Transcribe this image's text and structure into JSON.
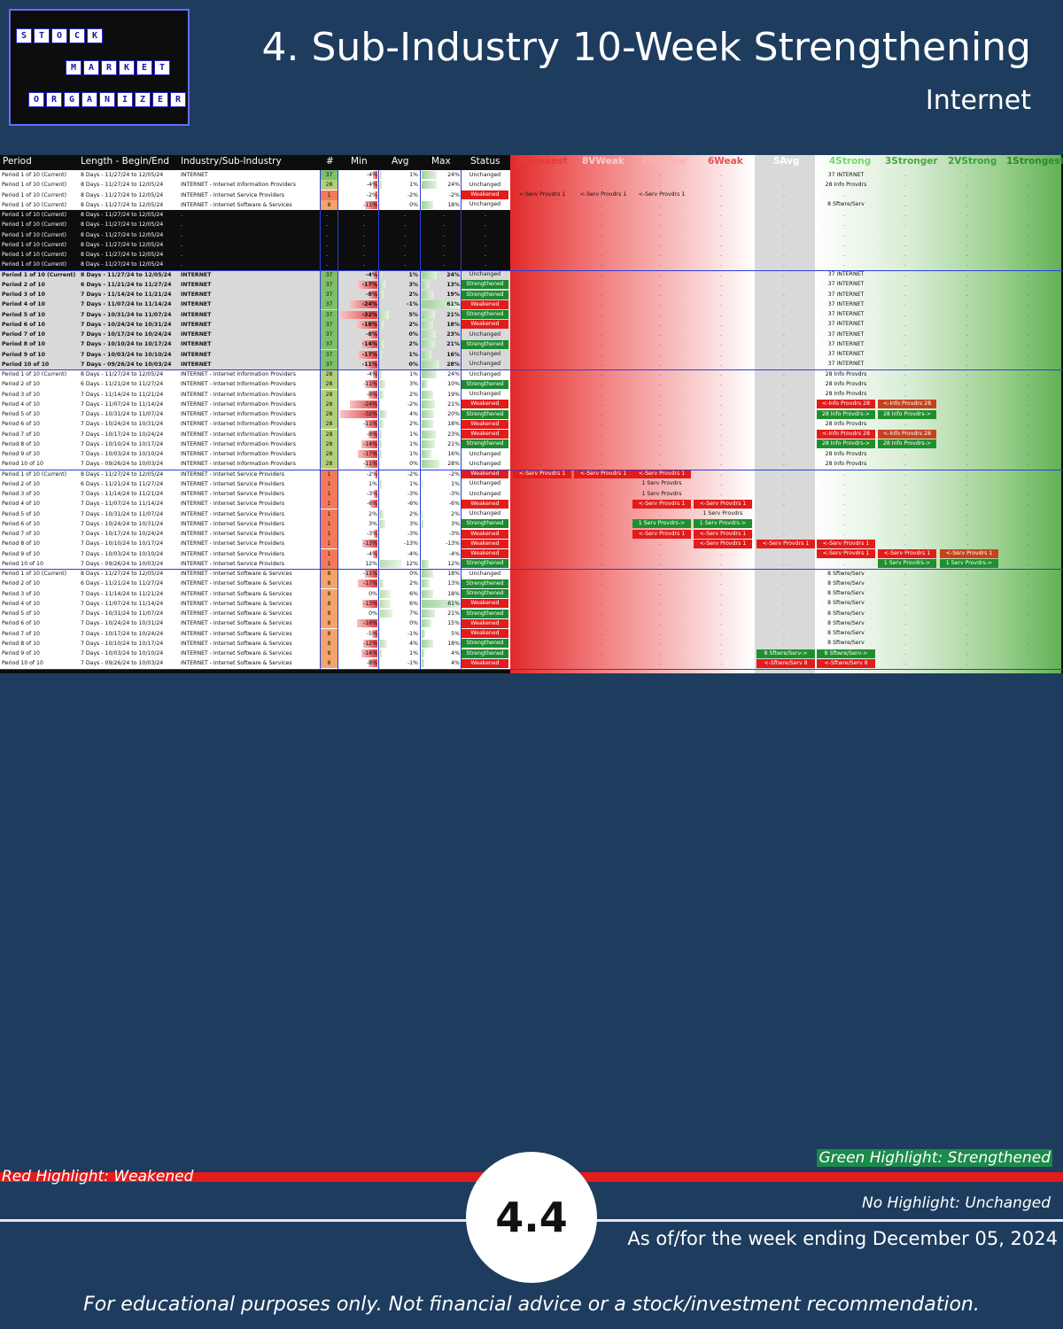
{
  "title": "4. Sub-Industry 10-Week Strengthening",
  "subtitle": "Internet",
  "logo": {
    "row1": [
      "S",
      "T",
      "O",
      "C",
      "K"
    ],
    "row2": [
      "M",
      "A",
      "R",
      "K",
      "E",
      "T"
    ],
    "row3": [
      "O",
      "R",
      "G",
      "A",
      "N",
      "I",
      "Z",
      "E",
      "R"
    ]
  },
  "headers": {
    "period": "Period",
    "length": "Length - Begin/End",
    "industry": "Industry/Sub-Industry",
    "num": "#",
    "min": "Min",
    "avg": "Avg",
    "max": "Max",
    "status": "Status",
    "c9": "9Weakest",
    "c8": "8VWeak",
    "c7": "7Weaker",
    "c6": "6Weak",
    "c5": "5Avg",
    "c4": "4Strong",
    "c3": "3Stronger",
    "c2": "2VStrong",
    "c1": "1Strongest"
  },
  "dot": ".",
  "colors": {
    "strength": "#1c8a2e",
    "weak": "#e21b1b"
  },
  "legend": {
    "green": "Green Highlight: Strengthened",
    "red": "Red Highlight: Weakened",
    "none": "No Highlight: Unchanged"
  },
  "page_number": "4.4",
  "as_of": "As of/for the week ending December 05, 2024",
  "disclaimer": "For educational purposes only. Not financial advice or a stock/investment recommendation.",
  "rows": [
    {
      "p": "Period 1 of 10 (Current)",
      "l": "8 Days - 11/27/24 to 12/05/24",
      "i": "INTERNET",
      "n": "37",
      "mn": "-4%",
      "av": "1%",
      "mx": "24%",
      "st": "Unchanged",
      "cols": {
        "c4": "37 INTERNET"
      }
    },
    {
      "p": "Period 1 of 10 (Current)",
      "l": "8 Days - 11/27/24 to 12/05/24",
      "i": "INTERNET - Internet Information Providers",
      "n": "28",
      "mn": "-4%",
      "av": "1%",
      "mx": "24%",
      "st": "Unchanged",
      "cols": {
        "c4": "28 Info Provdrs"
      }
    },
    {
      "p": "Period 1 of 10 (Current)",
      "l": "8 Days - 11/27/24 to 12/05/24",
      "i": "INTERNET - Internet Service Providers",
      "n": "1",
      "mn": "-2%",
      "av": "-2%",
      "mx": "-2%",
      "st": "Weakened",
      "cols": {
        "c9": "<-Serv Provdrs 1",
        "c8": "<-Serv Provdrs 1",
        "c7": "<-Serv Provdrs 1"
      }
    },
    {
      "p": "Period 1 of 10 (Current)",
      "l": "8 Days - 11/27/24 to 12/05/24",
      "i": "INTERNET - Internet Software & Services",
      "n": "8",
      "mn": "-11%",
      "av": "0%",
      "mx": "18%",
      "st": "Unchanged",
      "cols": {
        "c4": "8 Sftwre/Serv"
      }
    },
    {
      "p": "Period 1 of 10 (Current)",
      "l": "8 Days - 11/27/24 to 12/05/24",
      "i": ".",
      "n": "",
      "mn": "",
      "av": "",
      "mx": "",
      "st": "",
      "cols": {}
    },
    {
      "p": "Period 1 of 10 (Current)",
      "l": "8 Days - 11/27/24 to 12/05/24",
      "i": ".",
      "n": "",
      "mn": "",
      "av": "",
      "mx": "",
      "st": "",
      "cols": {}
    },
    {
      "p": "Period 1 of 10 (Current)",
      "l": "8 Days - 11/27/24 to 12/05/24",
      "i": ".",
      "n": "",
      "mn": "",
      "av": "",
      "mx": "",
      "st": "",
      "cols": {}
    },
    {
      "p": "Period 1 of 10 (Current)",
      "l": "8 Days - 11/27/24 to 12/05/24",
      "i": ".",
      "n": "",
      "mn": "",
      "av": "",
      "mx": "",
      "st": "",
      "cols": {}
    },
    {
      "p": "Period 1 of 10 (Current)",
      "l": "8 Days - 11/27/24 to 12/05/24",
      "i": ".",
      "n": "",
      "mn": "",
      "av": "",
      "mx": "",
      "st": "",
      "cols": {}
    },
    {
      "p": "Period 1 of 10 (Current)",
      "l": "8 Days - 11/27/24 to 12/05/24",
      "i": ".",
      "n": "",
      "mn": "",
      "av": "",
      "mx": "",
      "st": "",
      "cols": {}
    },
    {
      "p": "Period 1 of 10 (Current)",
      "l": "8 Days - 11/27/24 to 12/05/24",
      "i": "INTERNET",
      "n": "37",
      "mn": "-4%",
      "av": "1%",
      "mx": "24%",
      "st": "Unchanged",
      "cols": {
        "c4": "37 INTERNET"
      }
    },
    {
      "p": "Period 2 of 10",
      "l": "6 Days - 11/21/24 to 11/27/24",
      "i": "INTERNET",
      "n": "37",
      "mn": "-17%",
      "av": "3%",
      "mx": "13%",
      "st": "Strengthened",
      "cols": {
        "c4": "37 INTERNET"
      }
    },
    {
      "p": "Period 3 of 10",
      "l": "7 Days - 11/14/24 to 11/21/24",
      "i": "INTERNET",
      "n": "37",
      "mn": "-8%",
      "av": "2%",
      "mx": "19%",
      "st": "Strengthened",
      "cols": {
        "c4": "37 INTERNET"
      }
    },
    {
      "p": "Period 4 of 10",
      "l": "7 Days - 11/07/24 to 11/14/24",
      "i": "INTERNET",
      "n": "37",
      "mn": "-24%",
      "av": "-1%",
      "mx": "61%",
      "st": "Weakened",
      "cols": {
        "c4": "37 INTERNET"
      }
    },
    {
      "p": "Period 5 of 10",
      "l": "7 Days - 10/31/24 to 11/07/24",
      "i": "INTERNET",
      "n": "37",
      "mn": "-32%",
      "av": "5%",
      "mx": "21%",
      "st": "Strengthened",
      "cols": {
        "c4": "37 INTERNET"
      }
    },
    {
      "p": "Period 6 of 10",
      "l": "7 Days - 10/24/24 to 10/31/24",
      "i": "INTERNET",
      "n": "37",
      "mn": "-18%",
      "av": "2%",
      "mx": "18%",
      "st": "Weakened",
      "cols": {
        "c4": "37 INTERNET"
      }
    },
    {
      "p": "Period 7 of 10",
      "l": "7 Days - 10/17/24 to 10/24/24",
      "i": "INTERNET",
      "n": "37",
      "mn": "-8%",
      "av": "0%",
      "mx": "23%",
      "st": "Unchanged",
      "cols": {
        "c4": "37 INTERNET"
      }
    },
    {
      "p": "Period 8 of 10",
      "l": "7 Days - 10/10/24 to 10/17/24",
      "i": "INTERNET",
      "n": "37",
      "mn": "-14%",
      "av": "2%",
      "mx": "21%",
      "st": "Strengthened",
      "cols": {
        "c4": "37 INTERNET"
      }
    },
    {
      "p": "Period 9 of 10",
      "l": "7 Days - 10/03/24 to 10/10/24",
      "i": "INTERNET",
      "n": "37",
      "mn": "-17%",
      "av": "1%",
      "mx": "16%",
      "st": "Unchanged",
      "cols": {
        "c4": "37 INTERNET"
      }
    },
    {
      "p": "Period 10 of 10",
      "l": "7 Days - 09/26/24 to 10/03/24",
      "i": "INTERNET",
      "n": "37",
      "mn": "-11%",
      "av": "0%",
      "mx": "28%",
      "st": "Unchanged",
      "cols": {
        "c4": "37 INTERNET"
      }
    },
    {
      "p": "Period 1 of 10 (Current)",
      "l": "8 Days - 11/27/24 to 12/05/24",
      "i": "INTERNET - Internet Information Providers",
      "n": "28",
      "mn": "-4%",
      "av": "1%",
      "mx": "24%",
      "st": "Unchanged",
      "cols": {
        "c4": "28 Info Provdrs"
      }
    },
    {
      "p": "Period 2 of 10",
      "l": "6 Days - 11/21/24 to 11/27/24",
      "i": "INTERNET - Internet Information Providers",
      "n": "28",
      "mn": "-11%",
      "av": "3%",
      "mx": "10%",
      "st": "Strengthened",
      "cols": {
        "c4": "28 Info Provdrs"
      }
    },
    {
      "p": "Period 3 of 10",
      "l": "7 Days - 11/14/24 to 11/21/24",
      "i": "INTERNET - Internet Information Providers",
      "n": "28",
      "mn": "-8%",
      "av": "2%",
      "mx": "19%",
      "st": "Unchanged",
      "cols": {
        "c4": "28 Info Provdrs"
      }
    },
    {
      "p": "Period 4 of 10",
      "l": "7 Days - 11/07/24 to 11/14/24",
      "i": "INTERNET - Internet Information Providers",
      "n": "28",
      "mn": "-24%",
      "av": "-2%",
      "mx": "21%",
      "st": "Weakened",
      "cols": {
        "c4": "<-Info Provdrs 28",
        "c3": "<-Info Provdrs 28"
      },
      "hl": {
        "c4": "red",
        "c3": "brown"
      }
    },
    {
      "p": "Period 5 of 10",
      "l": "7 Days - 10/31/24 to 11/07/24",
      "i": "INTERNET - Internet Information Providers",
      "n": "28",
      "mn": "-32%",
      "av": "4%",
      "mx": "20%",
      "st": "Strengthened",
      "cols": {
        "c4": "28 Info Provdrs->",
        "c3": "28 Info Provdrs->"
      },
      "hl": {
        "c4": "green",
        "c3": "green"
      }
    },
    {
      "p": "Period 6 of 10",
      "l": "7 Days - 10/24/24 to 10/31/24",
      "i": "INTERNET - Internet Information Providers",
      "n": "28",
      "mn": "-11%",
      "av": "2%",
      "mx": "18%",
      "st": "Weakened",
      "cols": {
        "c4": "28 Info Provdrs"
      }
    },
    {
      "p": "Period 7 of 10",
      "l": "7 Days - 10/17/24 to 10/24/24",
      "i": "INTERNET - Internet Information Providers",
      "n": "28",
      "mn": "-8%",
      "av": "1%",
      "mx": "23%",
      "st": "Weakened",
      "cols": {
        "c4": "<-Info Provdrs 28",
        "c3": "<-Info Provdrs 28"
      },
      "hl": {
        "c4": "red",
        "c3": "brown"
      }
    },
    {
      "p": "Period 8 of 10",
      "l": "7 Days - 10/10/24 to 10/17/24",
      "i": "INTERNET - Internet Information Providers",
      "n": "28",
      "mn": "-14%",
      "av": "1%",
      "mx": "21%",
      "st": "Strengthened",
      "cols": {
        "c4": "28 Info Provdrs->",
        "c3": "28 Info Provdrs->"
      },
      "hl": {
        "c4": "green",
        "c3": "green"
      }
    },
    {
      "p": "Period 9 of 10",
      "l": "7 Days - 10/03/24 to 10/10/24",
      "i": "INTERNET - Internet Information Providers",
      "n": "28",
      "mn": "-17%",
      "av": "1%",
      "mx": "16%",
      "st": "Unchanged",
      "cols": {
        "c4": "28 Info Provdrs"
      }
    },
    {
      "p": "Period 10 of 10",
      "l": "7 Days - 09/26/24 to 10/03/24",
      "i": "INTERNET - Internet Information Providers",
      "n": "28",
      "mn": "-11%",
      "av": "0%",
      "mx": "28%",
      "st": "Unchanged",
      "cols": {
        "c4": "28 Info Provdrs"
      }
    },
    {
      "p": "Period 1 of 10 (Current)",
      "l": "8 Days - 11/27/24 to 12/05/24",
      "i": "INTERNET - Internet Service Providers",
      "n": "1",
      "mn": "-2%",
      "av": "-2%",
      "mx": "-2%",
      "st": "Weakened",
      "cols": {
        "c9": "<-Serv Provdrs 1",
        "c8": "<-Serv Provdrs 1",
        "c7": "<-Serv Provdrs 1"
      },
      "hl": {
        "c9": "red",
        "c8": "red",
        "c7": "red"
      }
    },
    {
      "p": "Period 2 of 10",
      "l": "6 Days - 11/21/24 to 11/27/24",
      "i": "INTERNET - Internet Service Providers",
      "n": "1",
      "mn": "1%",
      "av": "1%",
      "mx": "1%",
      "st": "Unchanged",
      "cols": {
        "c7": "1 Serv Provdrs"
      }
    },
    {
      "p": "Period 3 of 10",
      "l": "7 Days - 11/14/24 to 11/21/24",
      "i": "INTERNET - Internet Service Providers",
      "n": "1",
      "mn": "-3%",
      "av": "-3%",
      "mx": "-3%",
      "st": "Unchanged",
      "cols": {
        "c7": "1 Serv Provdrs"
      }
    },
    {
      "p": "Period 4 of 10",
      "l": "7 Days - 11/07/24 to 11/14/24",
      "i": "INTERNET - Internet Service Providers",
      "n": "1",
      "mn": "-6%",
      "av": "-6%",
      "mx": "-6%",
      "st": "Weakened",
      "cols": {
        "c7": "<-Serv Provdrs 1",
        "c6": "<-Serv Provdrs 1"
      },
      "hl": {
        "c7": "red",
        "c6": "red"
      }
    },
    {
      "p": "Period 5 of 10",
      "l": "7 Days - 10/31/24 to 11/07/24",
      "i": "INTERNET - Internet Service Providers",
      "n": "1",
      "mn": "2%",
      "av": "2%",
      "mx": "2%",
      "st": "Unchanged",
      "cols": {
        "c6": "1 Serv Provdrs"
      }
    },
    {
      "p": "Period 6 of 10",
      "l": "7 Days - 10/24/24 to 10/31/24",
      "i": "INTERNET - Internet Service Providers",
      "n": "1",
      "mn": "3%",
      "av": "3%",
      "mx": "3%",
      "st": "Strengthened",
      "cols": {
        "c7": "1 Serv Provdrs->",
        "c6": "1 Serv Provdrs->"
      },
      "hl": {
        "c7": "green",
        "c6": "green"
      }
    },
    {
      "p": "Period 7 of 10",
      "l": "7 Days - 10/17/24 to 10/24/24",
      "i": "INTERNET - Internet Service Providers",
      "n": "1",
      "mn": "-3%",
      "av": "-3%",
      "mx": "-3%",
      "st": "Weakened",
      "cols": {
        "c7": "<-Serv Provdrs 1",
        "c6": "<-Serv Provdrs 1"
      },
      "hl": {
        "c7": "red",
        "c6": "red"
      }
    },
    {
      "p": "Period 8 of 10",
      "l": "7 Days - 10/10/24 to 10/17/24",
      "i": "INTERNET - Internet Service Providers",
      "n": "1",
      "mn": "-13%",
      "av": "-13%",
      "mx": "-13%",
      "st": "Weakened",
      "cols": {
        "c6": "<-Serv Provdrs 1",
        "c5": "<-Serv Provdrs 1",
        "c4": "<-Serv Provdrs 1"
      },
      "hl": {
        "c6": "red",
        "c5": "red",
        "c4": "red"
      }
    },
    {
      "p": "Period 9 of 10",
      "l": "7 Days - 10/03/24 to 10/10/24",
      "i": "INTERNET - Internet Service Providers",
      "n": "1",
      "mn": "-4%",
      "av": "-4%",
      "mx": "-4%",
      "st": "Weakened",
      "cols": {
        "c4": "<-Serv Provdrs 1",
        "c3": "<-Serv Provdrs 1",
        "c2": "<-Serv Provdrs 1"
      },
      "hl": {
        "c4": "red",
        "c3": "red",
        "c2": "brown"
      }
    },
    {
      "p": "Period 10 of 10",
      "l": "7 Days - 09/26/24 to 10/03/24",
      "i": "INTERNET - Internet Service Providers",
      "n": "1",
      "mn": "12%",
      "av": "12%",
      "mx": "12%",
      "st": "Strengthened",
      "cols": {
        "c3": "1 Serv Provdrs->",
        "c2": "1 Serv Provdrs->"
      },
      "hl": {
        "c3": "green",
        "c2": "green"
      }
    },
    {
      "p": "Period 1 of 10 (Current)",
      "l": "8 Days - 11/27/24 to 12/05/24",
      "i": "INTERNET - Internet Software & Services",
      "n": "8",
      "mn": "-11%",
      "av": "0%",
      "mx": "18%",
      "st": "Unchanged",
      "cols": {
        "c4": "8 Sftwre/Serv"
      }
    },
    {
      "p": "Period 2 of 10",
      "l": "6 Days - 11/21/24 to 11/27/24",
      "i": "INTERNET - Internet Software & Services",
      "n": "8",
      "mn": "-17%",
      "av": "2%",
      "mx": "13%",
      "st": "Strengthened",
      "cols": {
        "c4": "8 Sftwre/Serv"
      }
    },
    {
      "p": "Period 3 of 10",
      "l": "7 Days - 11/14/24 to 11/21/24",
      "i": "INTERNET - Internet Software & Services",
      "n": "8",
      "mn": "0%",
      "av": "6%",
      "mx": "18%",
      "st": "Strengthened",
      "cols": {
        "c4": "8 Sftwre/Serv"
      }
    },
    {
      "p": "Period 4 of 10",
      "l": "7 Days - 11/07/24 to 11/14/24",
      "i": "INTERNET - Internet Software & Services",
      "n": "8",
      "mn": "-13%",
      "av": "6%",
      "mx": "61%",
      "st": "Weakened",
      "cols": {
        "c4": "8 Sftwre/Serv"
      }
    },
    {
      "p": "Period 5 of 10",
      "l": "7 Days - 10/31/24 to 11/07/24",
      "i": "INTERNET - Internet Software & Services",
      "n": "8",
      "mn": "0%",
      "av": "7%",
      "mx": "21%",
      "st": "Strengthened",
      "cols": {
        "c4": "8 Sftwre/Serv"
      }
    },
    {
      "p": "Period 6 of 10",
      "l": "7 Days - 10/24/24 to 10/31/24",
      "i": "INTERNET - Internet Software & Services",
      "n": "8",
      "mn": "-18%",
      "av": "0%",
      "mx": "15%",
      "st": "Weakened",
      "cols": {
        "c4": "8 Sftwre/Serv"
      }
    },
    {
      "p": "Period 7 of 10",
      "l": "7 Days - 10/17/24 to 10/24/24",
      "i": "INTERNET - Internet Software & Services",
      "n": "8",
      "mn": "-5%",
      "av": "-1%",
      "mx": "5%",
      "st": "Weakened",
      "cols": {
        "c4": "8 Sftwre/Serv"
      }
    },
    {
      "p": "Period 8 of 10",
      "l": "7 Days - 10/10/24 to 10/17/24",
      "i": "INTERNET - Internet Software & Services",
      "n": "8",
      "mn": "-12%",
      "av": "4%",
      "mx": "18%",
      "st": "Strengthened",
      "cols": {
        "c4": "8 Sftwre/Serv"
      }
    },
    {
      "p": "Period 9 of 10",
      "l": "7 Days - 10/03/24 to 10/10/24",
      "i": "INTERNET - Internet Software & Services",
      "n": "8",
      "mn": "-14%",
      "av": "1%",
      "mx": "4%",
      "st": "Strengthened",
      "cols": {
        "c5": "8 Sftwre/Serv->",
        "c4": "8 Sftwre/Serv->"
      },
      "hl": {
        "c5": "green",
        "c4": "green"
      }
    },
    {
      "p": "Period 10 of 10",
      "l": "7 Days - 09/26/24 to 10/03/24",
      "i": "INTERNET - Internet Software & Services",
      "n": "8",
      "mn": "-8%",
      "av": "-1%",
      "mx": "4%",
      "st": "Weakened",
      "cols": {
        "c5": "<-Sftwre/Serv 8",
        "c4": "<-Sftwre/Serv 8"
      },
      "hl": {
        "c5": "red",
        "c4": "red"
      }
    }
  ]
}
